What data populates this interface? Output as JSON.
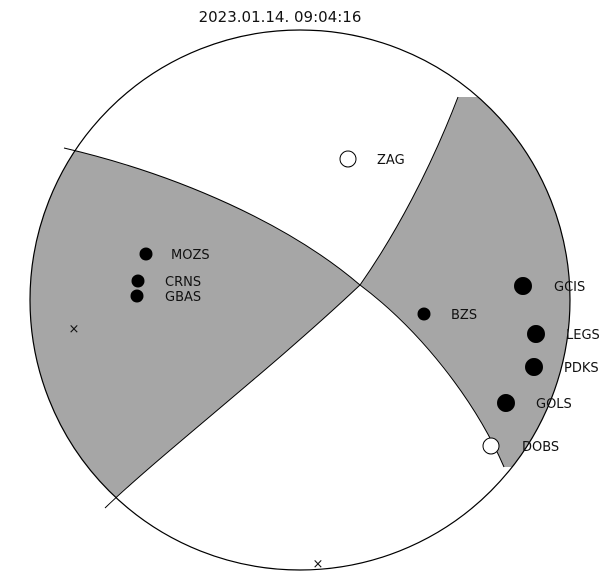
{
  "title": "2023.01.14. 09:04:16",
  "colors": {
    "quadrant_fill": "#a6a6a6",
    "compression_marker": "#000000",
    "dilatation_marker": "#ffffff",
    "outline": "#000000"
  },
  "stations": [
    {
      "code": "ZAG",
      "polarity": "dilatation",
      "size": "medium"
    },
    {
      "code": "MOZS",
      "polarity": "compression",
      "size": "small"
    },
    {
      "code": "CRNS",
      "polarity": "compression",
      "size": "small"
    },
    {
      "code": "GBAS",
      "polarity": "compression",
      "size": "small"
    },
    {
      "code": "BZS",
      "polarity": "compression",
      "size": "small"
    },
    {
      "code": "GCIS",
      "polarity": "compression",
      "size": "large"
    },
    {
      "code": "LEGS",
      "polarity": "compression",
      "size": "large"
    },
    {
      "code": "PDKS",
      "polarity": "compression",
      "size": "large"
    },
    {
      "code": "GOLS",
      "polarity": "compression",
      "size": "large"
    },
    {
      "code": "DOBS",
      "polarity": "dilatation",
      "size": "medium"
    }
  ],
  "axes_markers": [
    {
      "symbol": "×"
    },
    {
      "symbol": "×"
    }
  ]
}
